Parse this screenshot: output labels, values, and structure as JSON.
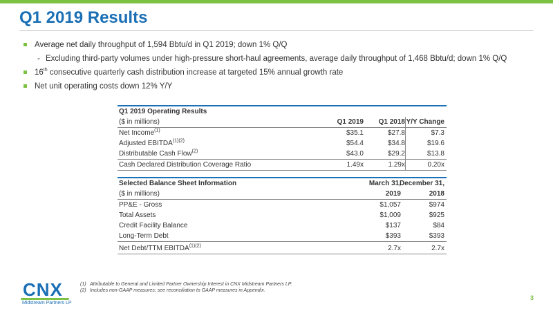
{
  "slide": {
    "title": "Q1 2019 Results",
    "page_number": "3",
    "accent_color": "#7cc142",
    "title_color": "#1b6fb5"
  },
  "bullets": {
    "b1": "Average net daily throughput of 1,594 Bbtu/d in Q1 2019; down 1% Q/Q",
    "sub1": "Excluding third-party volumes under high-pressure short-haul agreements, average daily throughput of 1,468 Bbtu/d; down 1% Q/Q",
    "b2_pre": "16",
    "b2_sup": "th",
    "b2_post": " consecutive quarterly cash distribution increase at targeted 15% annual growth rate",
    "b3": "Net unit operating costs down 12% Y/Y"
  },
  "operating_table": {
    "title": "Q1 2019 Operating Results",
    "units": "($ in millions)",
    "col1": "Q1 2019",
    "col2": "Q1 2018",
    "col3": "Y/Y Change",
    "rows": [
      {
        "label": "Net Income",
        "sup": "(1)",
        "v1": "$35.1",
        "v2": "$27.8",
        "v3": "$7.3"
      },
      {
        "label": "Adjusted EBITDA",
        "sup": "(1)(2)",
        "v1": "$54.4",
        "v2": "$34.8",
        "v3": "$19.6"
      },
      {
        "label": "Distributable Cash Flow",
        "sup": "(2)",
        "v1": "$43.0",
        "v2": "$29.2",
        "v3": "$13.8"
      },
      {
        "label": "Cash Declared Distribution Coverage Ratio",
        "sup": "",
        "v1": "1.49x",
        "v2": "1.29x",
        "v3": "0.20x"
      }
    ]
  },
  "balance_table": {
    "title": "Selected Balance Sheet Information",
    "units": "($ in millions)",
    "col1_a": "March 31,",
    "col1_b": "2019",
    "col2_a": "December 31,",
    "col2_b": "2018",
    "rows": [
      {
        "label": "PP&E - Gross",
        "sup": "",
        "v1": "$1,057",
        "v2": "$974"
      },
      {
        "label": "Total Assets",
        "sup": "",
        "v1": "$1,009",
        "v2": "$925"
      },
      {
        "label": "Credit Facility Balance",
        "sup": "",
        "v1": "$137",
        "v2": "$84"
      },
      {
        "label": "Long-Term Debt",
        "sup": "",
        "v1": "$393",
        "v2": "$393"
      },
      {
        "label": "Net Debt/TTM EBITDA",
        "sup": "(1)(2)",
        "v1": "2.7x",
        "v2": "2.7x"
      }
    ]
  },
  "footnotes": {
    "n1": "(1)",
    "f1": "Attributable to General and Limited Partner Ownership Interest in CNX Midstream Partners LP.",
    "n2": "(2)",
    "f2": "Includes non-GAAP measures; see reconciliation to GAAP measures in Appendix."
  },
  "logo": {
    "text": "CNX",
    "subtext": "Midstream Partners LP"
  }
}
